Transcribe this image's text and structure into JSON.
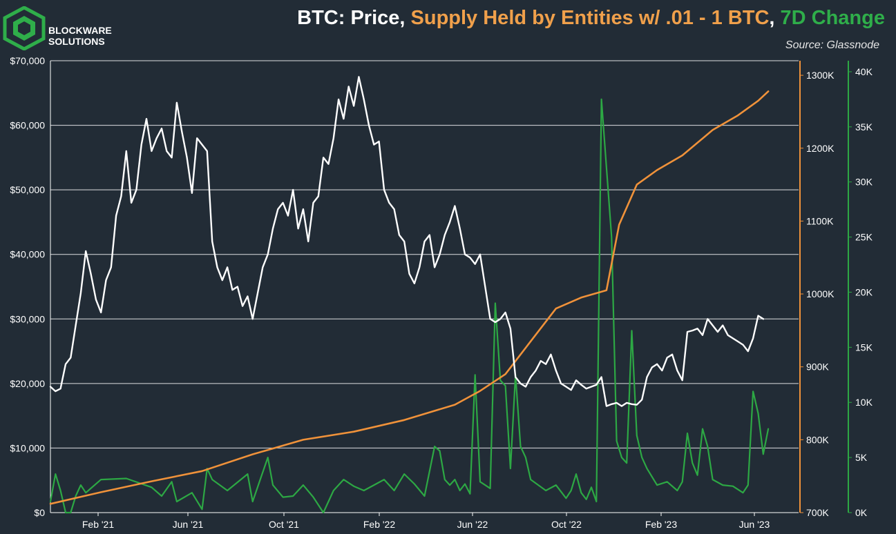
{
  "brand": {
    "line1": "BLOCKWARE",
    "line2": "SOLUTIONS"
  },
  "title_parts": [
    {
      "text": "BTC: Price, ",
      "color": "#ffffff"
    },
    {
      "text": "Supply Held by Entities w/ .01 - 1 BTC",
      "color": "#f0a04b"
    },
    {
      "text": ", ",
      "color": "#ffffff"
    },
    {
      "text": "7D Change",
      "color": "#2fae4a"
    }
  ],
  "source": "Source: Glassnode",
  "colors": {
    "price": "#ffffff",
    "supply": "#f0923a",
    "change": "#2da844",
    "grid": "#ffffff",
    "background": "#222c36"
  },
  "chart_data": {
    "type": "line",
    "x_axis": {
      "ticks": [
        "Feb '21",
        "Jun '21",
        "Oct '21",
        "Feb '22",
        "Jun '22",
        "Oct '22",
        "Feb '23",
        "Jun '23"
      ]
    },
    "y_left": {
      "ticks": [
        "$0",
        "$10,000",
        "$20,000",
        "$30,000",
        "$40,000",
        "$50,000",
        "$60,000",
        "$70,000"
      ],
      "range": [
        0,
        70000
      ]
    },
    "y_right_supply": {
      "ticks": [
        "700K",
        "800K",
        "900K",
        "1000K",
        "1100K",
        "1200K",
        "1300K"
      ],
      "range": [
        700000,
        1320000
      ]
    },
    "y_right_change": {
      "ticks": [
        "0K",
        "5K",
        "10K",
        "15K",
        "20K",
        "25K",
        "30K",
        "35K",
        "40K"
      ],
      "range": [
        0,
        41000
      ]
    },
    "grid": "horizontal",
    "series": [
      {
        "key": "price",
        "axis": "left",
        "points": [
          [
            0,
            19500
          ],
          [
            2,
            18800
          ],
          [
            4,
            19200
          ],
          [
            6,
            23000
          ],
          [
            8,
            24000
          ],
          [
            10,
            29000
          ],
          [
            12,
            34000
          ],
          [
            14,
            40500
          ],
          [
            16,
            37000
          ],
          [
            18,
            33000
          ],
          [
            20,
            31000
          ],
          [
            22,
            36000
          ],
          [
            24,
            38000
          ],
          [
            26,
            46000
          ],
          [
            28,
            49000
          ],
          [
            30,
            56000
          ],
          [
            32,
            48000
          ],
          [
            34,
            50000
          ],
          [
            36,
            57000
          ],
          [
            38,
            61000
          ],
          [
            40,
            56000
          ],
          [
            42,
            58000
          ],
          [
            44,
            59500
          ],
          [
            46,
            56000
          ],
          [
            48,
            55000
          ],
          [
            50,
            63500
          ],
          [
            52,
            59000
          ],
          [
            54,
            55000
          ],
          [
            56,
            49500
          ],
          [
            58,
            58000
          ],
          [
            60,
            57000
          ],
          [
            62,
            56000
          ],
          [
            64,
            42000
          ],
          [
            66,
            38000
          ],
          [
            68,
            36000
          ],
          [
            70,
            38000
          ],
          [
            72,
            34500
          ],
          [
            74,
            35000
          ],
          [
            76,
            32000
          ],
          [
            78,
            33500
          ],
          [
            80,
            30000
          ],
          [
            82,
            34000
          ],
          [
            84,
            38000
          ],
          [
            86,
            40000
          ],
          [
            88,
            44000
          ],
          [
            90,
            47000
          ],
          [
            92,
            48000
          ],
          [
            94,
            46000
          ],
          [
            96,
            50000
          ],
          [
            98,
            44000
          ],
          [
            100,
            47000
          ],
          [
            102,
            42000
          ],
          [
            104,
            48000
          ],
          [
            106,
            49000
          ],
          [
            108,
            55000
          ],
          [
            110,
            54000
          ],
          [
            112,
            58000
          ],
          [
            114,
            64000
          ],
          [
            116,
            61000
          ],
          [
            118,
            66000
          ],
          [
            120,
            63000
          ],
          [
            122,
            67500
          ],
          [
            124,
            64000
          ],
          [
            126,
            60000
          ],
          [
            128,
            57000
          ],
          [
            130,
            57500
          ],
          [
            132,
            50000
          ],
          [
            134,
            48000
          ],
          [
            136,
            47000
          ],
          [
            138,
            43000
          ],
          [
            140,
            42000
          ],
          [
            142,
            37000
          ],
          [
            144,
            35500
          ],
          [
            146,
            38000
          ],
          [
            148,
            42000
          ],
          [
            150,
            43000
          ],
          [
            152,
            38000
          ],
          [
            154,
            40000
          ],
          [
            156,
            43000
          ],
          [
            158,
            45000
          ],
          [
            160,
            47500
          ],
          [
            162,
            44000
          ],
          [
            164,
            40000
          ],
          [
            166,
            39500
          ],
          [
            168,
            38500
          ],
          [
            170,
            40000
          ],
          [
            172,
            35000
          ],
          [
            174,
            30000
          ],
          [
            176,
            29500
          ],
          [
            178,
            30000
          ],
          [
            180,
            31000
          ],
          [
            182,
            28500
          ],
          [
            184,
            21000
          ],
          [
            186,
            20000
          ],
          [
            188,
            19500
          ],
          [
            190,
            21000
          ],
          [
            192,
            22000
          ],
          [
            194,
            23500
          ],
          [
            196,
            23000
          ],
          [
            198,
            24500
          ],
          [
            200,
            22000
          ],
          [
            202,
            20000
          ],
          [
            204,
            19500
          ],
          [
            206,
            19000
          ],
          [
            208,
            20500
          ],
          [
            210,
            19800
          ],
          [
            212,
            19200
          ],
          [
            214,
            19500
          ],
          [
            216,
            19800
          ],
          [
            218,
            21000
          ],
          [
            220,
            16500
          ],
          [
            222,
            16800
          ],
          [
            224,
            17000
          ],
          [
            226,
            16500
          ],
          [
            228,
            17000
          ],
          [
            230,
            16800
          ],
          [
            232,
            16700
          ],
          [
            234,
            17500
          ],
          [
            236,
            21000
          ],
          [
            238,
            22500
          ],
          [
            240,
            23000
          ],
          [
            242,
            22000
          ],
          [
            244,
            24000
          ],
          [
            246,
            24500
          ],
          [
            248,
            22000
          ],
          [
            250,
            20500
          ],
          [
            252,
            28000
          ],
          [
            254,
            28200
          ],
          [
            256,
            28500
          ],
          [
            258,
            27500
          ],
          [
            260,
            30000
          ],
          [
            262,
            29000
          ],
          [
            264,
            28000
          ],
          [
            266,
            29000
          ],
          [
            268,
            27500
          ],
          [
            270,
            27000
          ],
          [
            272,
            26500
          ],
          [
            274,
            26000
          ],
          [
            276,
            25000
          ],
          [
            278,
            27000
          ],
          [
            280,
            30500
          ],
          [
            282,
            30000
          ]
        ]
      },
      {
        "key": "supply",
        "axis": "right_supply",
        "points": [
          [
            0,
            712000
          ],
          [
            20,
            728000
          ],
          [
            40,
            743000
          ],
          [
            60,
            757000
          ],
          [
            80,
            780000
          ],
          [
            100,
            800000
          ],
          [
            120,
            811000
          ],
          [
            140,
            827000
          ],
          [
            160,
            848000
          ],
          [
            170,
            867000
          ],
          [
            180,
            890000
          ],
          [
            190,
            935000
          ],
          [
            200,
            980000
          ],
          [
            210,
            995000
          ],
          [
            220,
            1005000
          ],
          [
            225,
            1095000
          ],
          [
            232,
            1150000
          ],
          [
            240,
            1170000
          ],
          [
            250,
            1190000
          ],
          [
            262,
            1225000
          ],
          [
            272,
            1245000
          ],
          [
            280,
            1265000
          ],
          [
            284,
            1278000
          ]
        ]
      },
      {
        "key": "change",
        "axis": "right_change",
        "points": [
          [
            0,
            1000
          ],
          [
            2,
            3500
          ],
          [
            4,
            2000
          ],
          [
            6,
            0
          ],
          [
            8,
            0
          ],
          [
            10,
            1500
          ],
          [
            12,
            2500
          ],
          [
            14,
            1800
          ],
          [
            20,
            3000
          ],
          [
            30,
            3100
          ],
          [
            40,
            2300
          ],
          [
            44,
            1500
          ],
          [
            48,
            2800
          ],
          [
            50,
            1000
          ],
          [
            56,
            1800
          ],
          [
            60,
            300
          ],
          [
            62,
            4000
          ],
          [
            64,
            3000
          ],
          [
            70,
            2000
          ],
          [
            78,
            3500
          ],
          [
            80,
            1000
          ],
          [
            86,
            5000
          ],
          [
            88,
            2500
          ],
          [
            92,
            1400
          ],
          [
            96,
            1500
          ],
          [
            100,
            2500
          ],
          [
            104,
            1400
          ],
          [
            108,
            0
          ],
          [
            112,
            2000
          ],
          [
            116,
            3000
          ],
          [
            120,
            2400
          ],
          [
            124,
            2000
          ],
          [
            128,
            2500
          ],
          [
            132,
            3000
          ],
          [
            136,
            2000
          ],
          [
            140,
            3500
          ],
          [
            144,
            2600
          ],
          [
            148,
            1500
          ],
          [
            152,
            6000
          ],
          [
            154,
            5600
          ],
          [
            156,
            3000
          ],
          [
            158,
            2500
          ],
          [
            160,
            3000
          ],
          [
            162,
            2000
          ],
          [
            164,
            2600
          ],
          [
            166,
            1700
          ],
          [
            168,
            12500
          ],
          [
            170,
            2800
          ],
          [
            172,
            2500
          ],
          [
            174,
            2200
          ],
          [
            176,
            19000
          ],
          [
            178,
            12000
          ],
          [
            180,
            11500
          ],
          [
            182,
            4000
          ],
          [
            184,
            12500
          ],
          [
            186,
            6000
          ],
          [
            188,
            5000
          ],
          [
            190,
            3000
          ],
          [
            196,
            2000
          ],
          [
            200,
            2500
          ],
          [
            204,
            1300
          ],
          [
            206,
            2000
          ],
          [
            208,
            3500
          ],
          [
            210,
            1800
          ],
          [
            212,
            1200
          ],
          [
            214,
            2300
          ],
          [
            216,
            1000
          ],
          [
            218,
            37500
          ],
          [
            222,
            25000
          ],
          [
            224,
            6500
          ],
          [
            226,
            5000
          ],
          [
            228,
            4500
          ],
          [
            230,
            16500
          ],
          [
            232,
            7000
          ],
          [
            234,
            5000
          ],
          [
            236,
            4000
          ],
          [
            240,
            2500
          ],
          [
            244,
            2800
          ],
          [
            248,
            2000
          ],
          [
            250,
            2800
          ],
          [
            252,
            7200
          ],
          [
            254,
            4500
          ],
          [
            256,
            3400
          ],
          [
            258,
            7600
          ],
          [
            260,
            6000
          ],
          [
            262,
            3000
          ],
          [
            266,
            2500
          ],
          [
            270,
            2400
          ],
          [
            274,
            1800
          ],
          [
            276,
            2500
          ],
          [
            278,
            11000
          ],
          [
            280,
            9000
          ],
          [
            282,
            5300
          ],
          [
            284,
            7600
          ]
        ]
      }
    ]
  }
}
